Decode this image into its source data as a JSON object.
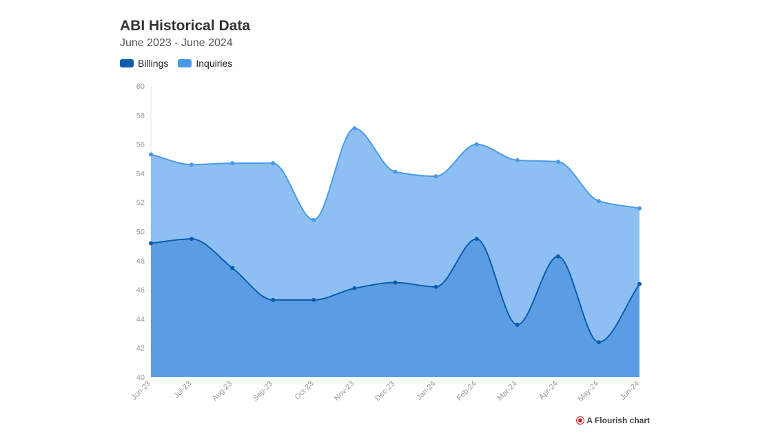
{
  "title": "ABI Historical Data",
  "subtitle": "June 2023 - June 2024",
  "footer": {
    "text": "A Flourish chart",
    "icon": "flourish-logo-icon",
    "icon_color": "#d62828"
  },
  "colors": {
    "billings_line": "#0b5cad",
    "billings_fill": "#5b9de3",
    "inquiries_line": "#4a9ae8",
    "inquiries_fill": "#8dbff2",
    "axis_text": "#999999",
    "axis_line": "#e6e6e6"
  },
  "chart_data": {
    "type": "area",
    "title": "ABI Historical Data",
    "subtitle": "June 2023 - June 2024",
    "categories": [
      "Jun-23",
      "Jul-23",
      "Aug-23",
      "Sep-23",
      "Oct-23",
      "Nov-23",
      "Dec-23",
      "Jan-24",
      "Feb-24",
      "Mar-24",
      "Apr-24",
      "May-24",
      "Jun-24"
    ],
    "series": [
      {
        "name": "Billings",
        "color": "#0b5cad",
        "values": [
          49.2,
          49.5,
          47.5,
          45.3,
          45.3,
          46.1,
          46.5,
          46.2,
          49.5,
          43.6,
          48.3,
          42.4,
          46.4
        ]
      },
      {
        "name": "Inquiries",
        "color": "#4a9ae8",
        "values": [
          55.3,
          54.6,
          54.7,
          54.7,
          50.8,
          57.1,
          54.1,
          53.8,
          56.0,
          54.9,
          54.8,
          52.1,
          51.6
        ]
      }
    ],
    "ylim": [
      40,
      60
    ],
    "yticks": [
      40,
      42,
      44,
      46,
      48,
      50,
      52,
      54,
      56,
      58,
      60
    ],
    "legend": "top-left",
    "grid": false,
    "xlabel": "",
    "ylabel": ""
  }
}
